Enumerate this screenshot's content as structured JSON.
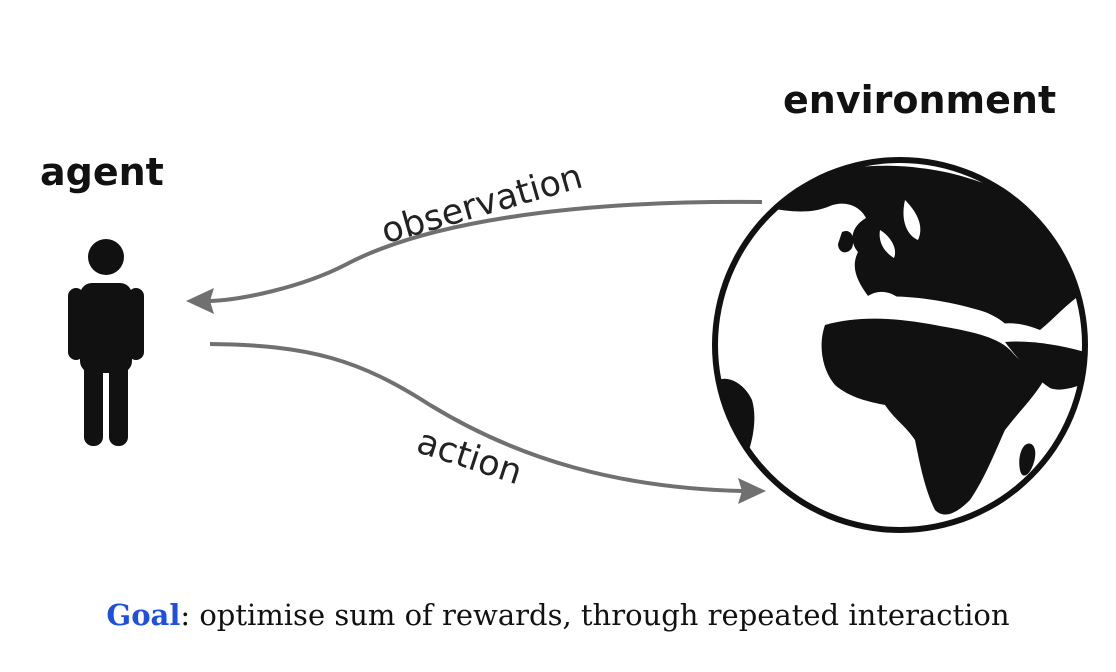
{
  "agent": {
    "title": "agent",
    "icon": "person-icon"
  },
  "environment": {
    "title": "environment",
    "icon": "earth-globe-icon"
  },
  "arrows": {
    "observation_label": "observation",
    "action_label": "action",
    "color": "#707070"
  },
  "caption": {
    "goal_label": "Goal",
    "text": ": optimise sum of rewards, through repeated interaction",
    "goal_color": "#1f4fe0"
  }
}
